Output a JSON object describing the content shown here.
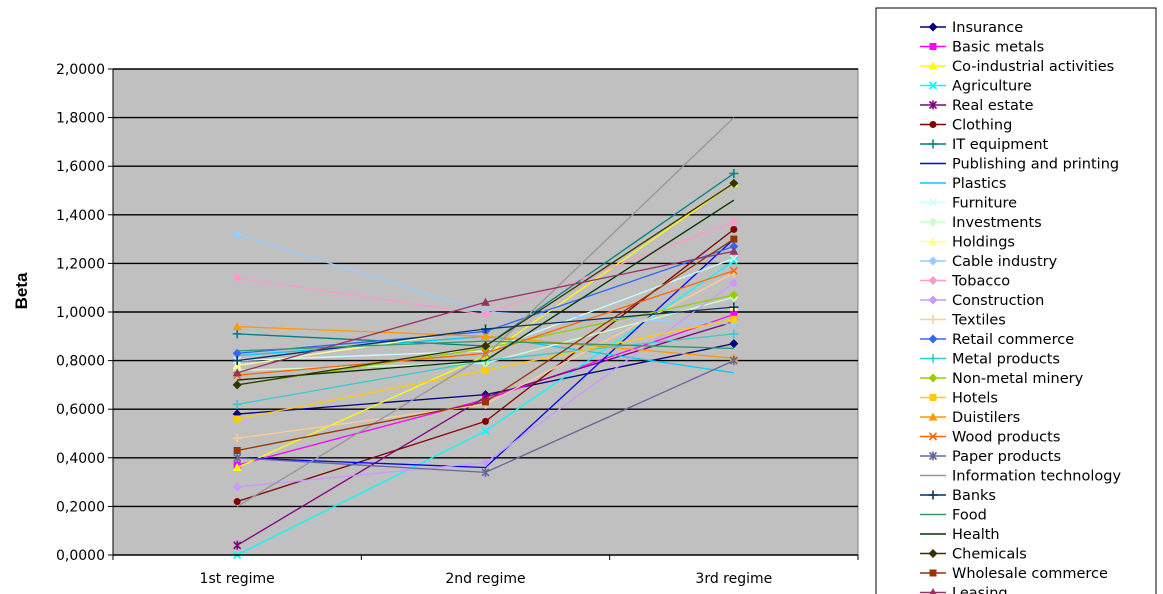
{
  "chart_data": {
    "type": "line",
    "title": "",
    "xlabel": "",
    "ylabel": "Beta",
    "categories": [
      "1st regime",
      "2nd regime",
      "3rd regime"
    ],
    "yticks": [
      "0,0000",
      "0,2000",
      "0,4000",
      "0,6000",
      "0,8000",
      "1,0000",
      "1,2000",
      "1,4000",
      "1,6000",
      "1,8000",
      "2,0000"
    ],
    "ylim": [
      0,
      2
    ],
    "grid": true,
    "legend_position": "right",
    "series": [
      {
        "name": "Insurance",
        "color": "#000080",
        "marker": "diamond",
        "values": [
          0.58,
          0.66,
          0.87
        ]
      },
      {
        "name": "Basic metals",
        "color": "#ff00ff",
        "marker": "square",
        "values": [
          0.37,
          0.64,
          0.99
        ]
      },
      {
        "name": "Co-industrial activities",
        "color": "#ffff00",
        "marker": "triangle",
        "values": [
          0.36,
          0.82,
          1.53
        ]
      },
      {
        "name": "Agriculture",
        "color": "#00ffff",
        "marker": "x",
        "values": [
          0.0,
          0.51,
          1.21
        ]
      },
      {
        "name": "Real estate",
        "color": "#800080",
        "marker": "star",
        "values": [
          0.04,
          0.65,
          0.96
        ]
      },
      {
        "name": "Clothing",
        "color": "#800000",
        "marker": "circle",
        "values": [
          0.22,
          0.55,
          1.34
        ]
      },
      {
        "name": "IT equipment",
        "color": "#008080",
        "marker": "plus",
        "values": [
          0.91,
          0.86,
          1.57
        ]
      },
      {
        "name": "Publishing and printing",
        "color": "#0000ff",
        "marker": "none",
        "values": [
          0.4,
          0.36,
          1.3
        ]
      },
      {
        "name": "Plastics",
        "color": "#00ccff",
        "marker": "none",
        "values": [
          0.82,
          0.9,
          0.75
        ]
      },
      {
        "name": "Furniture",
        "color": "#ccffff",
        "marker": "x",
        "values": [
          0.8,
          0.84,
          1.22
        ]
      },
      {
        "name": "Investments",
        "color": "#ccffcc",
        "marker": "diamond",
        "values": [
          0.76,
          0.79,
          1.06
        ]
      },
      {
        "name": "Holdings",
        "color": "#ffff99",
        "marker": "triangle",
        "values": [
          0.78,
          0.93,
          1.02
        ]
      },
      {
        "name": "Cable industry",
        "color": "#99ccff",
        "marker": "diamond",
        "values": [
          1.32,
          1.0,
          0.95
        ]
      },
      {
        "name": "Tobacco",
        "color": "#ff99cc",
        "marker": "diamond",
        "values": [
          1.14,
          0.99,
          1.37
        ]
      },
      {
        "name": "Construction",
        "color": "#cc99ff",
        "marker": "diamond",
        "values": [
          0.28,
          0.38,
          1.12
        ]
      },
      {
        "name": "Textiles",
        "color": "#ffcc99",
        "marker": "plus",
        "values": [
          0.48,
          0.62,
          1.16
        ]
      },
      {
        "name": "Retail commerce",
        "color": "#3366ff",
        "marker": "diamond",
        "values": [
          0.83,
          0.92,
          1.27
        ]
      },
      {
        "name": "Metal products",
        "color": "#33cccc",
        "marker": "plus",
        "values": [
          0.62,
          0.8,
          0.91
        ]
      },
      {
        "name": "Non-metal minery",
        "color": "#99cc00",
        "marker": "diamond",
        "values": [
          0.7,
          0.85,
          1.07
        ]
      },
      {
        "name": "Hotels",
        "color": "#ffcc00",
        "marker": "square",
        "values": [
          0.56,
          0.76,
          0.97
        ]
      },
      {
        "name": "Duistilers",
        "color": "#ff9900",
        "marker": "triangle",
        "values": [
          0.94,
          0.9,
          0.81
        ]
      },
      {
        "name": "Wood products",
        "color": "#ff6600",
        "marker": "x",
        "values": [
          0.74,
          0.83,
          1.17
        ]
      },
      {
        "name": "Paper products",
        "color": "#666699",
        "marker": "star",
        "values": [
          0.4,
          0.34,
          0.8
        ]
      },
      {
        "name": "Information technology",
        "color": "#969696",
        "marker": "none",
        "values": [
          0.2,
          0.82,
          1.8
        ]
      },
      {
        "name": "Banks",
        "color": "#003366",
        "marker": "plus",
        "values": [
          0.8,
          0.93,
          1.02
        ]
      },
      {
        "name": "Food",
        "color": "#339966",
        "marker": "none",
        "values": [
          0.84,
          0.88,
          0.85
        ]
      },
      {
        "name": "Health",
        "color": "#003300",
        "marker": "none",
        "values": [
          0.72,
          0.8,
          1.46
        ]
      },
      {
        "name": "Chemicals",
        "color": "#333300",
        "marker": "diamond",
        "values": [
          0.7,
          0.86,
          1.53
        ]
      },
      {
        "name": "Wholesale commerce",
        "color": "#993300",
        "marker": "square",
        "values": [
          0.43,
          0.63,
          1.3
        ]
      },
      {
        "name": "Leasing",
        "color": "#993366",
        "marker": "triangle",
        "values": [
          0.75,
          1.04,
          1.25
        ]
      }
    ]
  }
}
